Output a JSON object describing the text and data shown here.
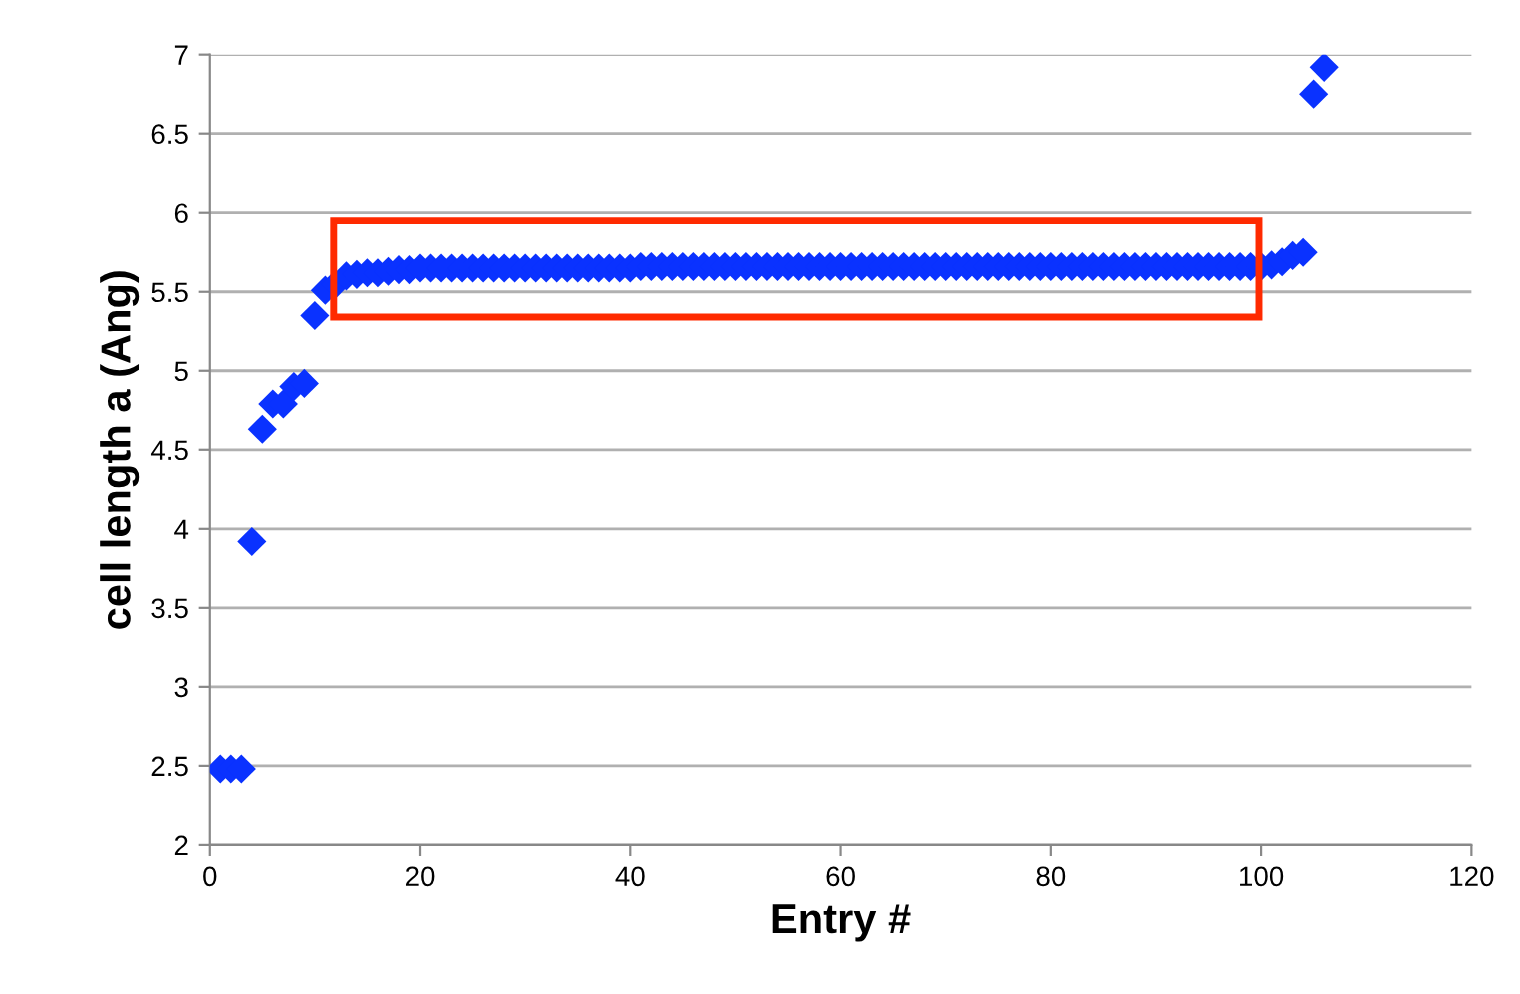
{
  "chart_data": {
    "type": "scatter",
    "xlabel": "Entry #",
    "ylabel": "cell length a (Ang)",
    "x": [
      1,
      2,
      3,
      4,
      5,
      6,
      7,
      8,
      9,
      10,
      11,
      12,
      13,
      14,
      15,
      16,
      17,
      18,
      19,
      20,
      21,
      22,
      23,
      24,
      25,
      26,
      27,
      28,
      29,
      30,
      31,
      32,
      33,
      34,
      35,
      36,
      37,
      38,
      39,
      40,
      41,
      42,
      43,
      44,
      45,
      46,
      47,
      48,
      49,
      50,
      51,
      52,
      53,
      54,
      55,
      56,
      57,
      58,
      59,
      60,
      61,
      62,
      63,
      64,
      65,
      66,
      67,
      68,
      69,
      70,
      71,
      72,
      73,
      74,
      75,
      76,
      77,
      78,
      79,
      80,
      81,
      82,
      83,
      84,
      85,
      86,
      87,
      88,
      89,
      90,
      91,
      92,
      93,
      94,
      95,
      96,
      97,
      98,
      99,
      100,
      101,
      102,
      103,
      104,
      105,
      106
    ],
    "series": [
      {
        "color": "#0a32ff",
        "values": [
          2.48,
          2.48,
          2.48,
          3.92,
          4.63,
          4.79,
          4.79,
          4.9,
          4.92,
          5.35,
          5.51,
          5.55,
          5.6,
          5.61,
          5.62,
          5.62,
          5.63,
          5.64,
          5.64,
          5.65,
          5.65,
          5.65,
          5.65,
          5.65,
          5.65,
          5.65,
          5.65,
          5.65,
          5.65,
          5.65,
          5.65,
          5.65,
          5.65,
          5.65,
          5.65,
          5.65,
          5.65,
          5.65,
          5.65,
          5.65,
          5.66,
          5.66,
          5.66,
          5.66,
          5.66,
          5.66,
          5.66,
          5.66,
          5.66,
          5.66,
          5.66,
          5.66,
          5.66,
          5.66,
          5.66,
          5.66,
          5.66,
          5.66,
          5.66,
          5.66,
          5.66,
          5.66,
          5.66,
          5.66,
          5.66,
          5.66,
          5.66,
          5.66,
          5.66,
          5.66,
          5.66,
          5.66,
          5.66,
          5.66,
          5.66,
          5.66,
          5.66,
          5.66,
          5.66,
          5.66,
          5.66,
          5.66,
          5.66,
          5.66,
          5.66,
          5.66,
          5.66,
          5.66,
          5.66,
          5.66,
          5.66,
          5.66,
          5.66,
          5.66,
          5.66,
          5.66,
          5.66,
          5.66,
          5.66,
          5.66,
          5.67,
          5.69,
          5.73,
          5.75,
          6.75,
          6.92
        ]
      }
    ],
    "xlim": [
      0,
      120
    ],
    "xticks": [
      0,
      20,
      40,
      60,
      80,
      100,
      120
    ],
    "ylim": [
      2,
      7
    ],
    "yticks": [
      2,
      2.5,
      3,
      3.5,
      4,
      4.5,
      5,
      5.5,
      6,
      6.5,
      7
    ],
    "grid": "y",
    "marker": "diamond",
    "legend": false
  }
}
